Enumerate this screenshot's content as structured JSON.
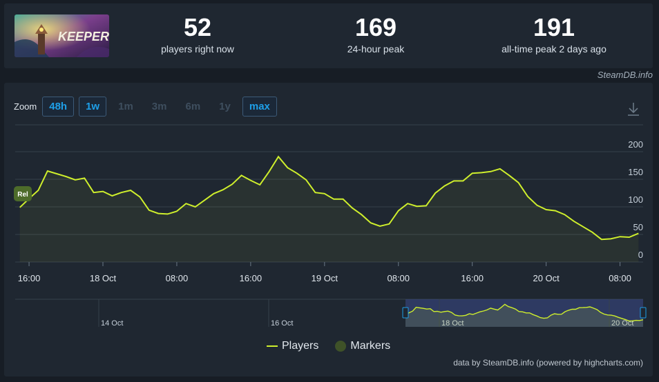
{
  "stats": [
    {
      "value": "52",
      "label": "players right now"
    },
    {
      "value": "169",
      "label": "24-hour peak"
    },
    {
      "value": "191",
      "label": "all-time peak 2 days ago"
    }
  ],
  "game_art_text": "KEEPER",
  "credit_top": "SteamDB.info",
  "zoom": {
    "label": "Zoom",
    "buttons": [
      {
        "label": "48h",
        "state": "enabled"
      },
      {
        "label": "1w",
        "state": "enabled"
      },
      {
        "label": "1m",
        "state": "disabled"
      },
      {
        "label": "3m",
        "state": "disabled"
      },
      {
        "label": "6m",
        "state": "disabled"
      },
      {
        "label": "1y",
        "state": "disabled"
      },
      {
        "label": "max",
        "state": "selected"
      }
    ]
  },
  "marker_label": "Rel",
  "legend": {
    "players": "Players",
    "markers": "Markers"
  },
  "credit_bottom": "data by SteamDB.info (powered by highcharts.com)",
  "colors": {
    "line": "#cfef2c",
    "accent": "#1e9fe8",
    "background": "#1f2731",
    "navigator_mask": "#3a4a8a"
  },
  "chart_data": {
    "type": "line",
    "series": [
      {
        "name": "Players",
        "hours": [
          -9,
          -8,
          -7,
          -6,
          -5,
          -4,
          -3,
          -2,
          -1,
          0,
          1,
          2,
          3,
          4,
          5,
          6,
          7,
          8,
          9,
          10,
          11,
          12,
          13,
          14,
          15,
          16,
          17,
          18,
          19,
          20,
          21,
          22,
          23,
          24,
          25,
          26,
          27,
          28,
          29,
          30,
          31,
          32,
          33,
          34,
          35,
          36,
          37,
          38,
          39,
          40,
          41,
          42,
          43,
          44,
          45,
          46,
          47,
          48,
          49,
          50,
          51,
          52,
          53,
          54,
          55,
          56,
          57,
          58
        ],
        "values": [
          99,
          115,
          130,
          165,
          160,
          155,
          149,
          152,
          126,
          128,
          120,
          126,
          130,
          118,
          94,
          88,
          87,
          92,
          106,
          100,
          112,
          124,
          131,
          141,
          157,
          148,
          140,
          164,
          191,
          171,
          161,
          149,
          126,
          124,
          114,
          114,
          98,
          86,
          71,
          65,
          69,
          93,
          106,
          101,
          102,
          125,
          138,
          147,
          147,
          161,
          162,
          164,
          169,
          157,
          144,
          119,
          103,
          95,
          93,
          86,
          74,
          64,
          54,
          41,
          42,
          46,
          45,
          52
        ]
      }
    ],
    "x_tick_labels": [
      "16:00",
      "18 Oct",
      "08:00",
      "16:00",
      "19 Oct",
      "08:00",
      "16:00",
      "20 Oct",
      "08:00"
    ],
    "y_ticks": [
      0,
      50,
      100,
      150,
      200
    ],
    "ylim": [
      0,
      200
    ],
    "grid": true,
    "navigator": {
      "tick_labels": [
        "14 Oct",
        "16 Oct",
        "18 Oct",
        "20 Oct"
      ]
    },
    "legend_placement": "bottom-center"
  }
}
